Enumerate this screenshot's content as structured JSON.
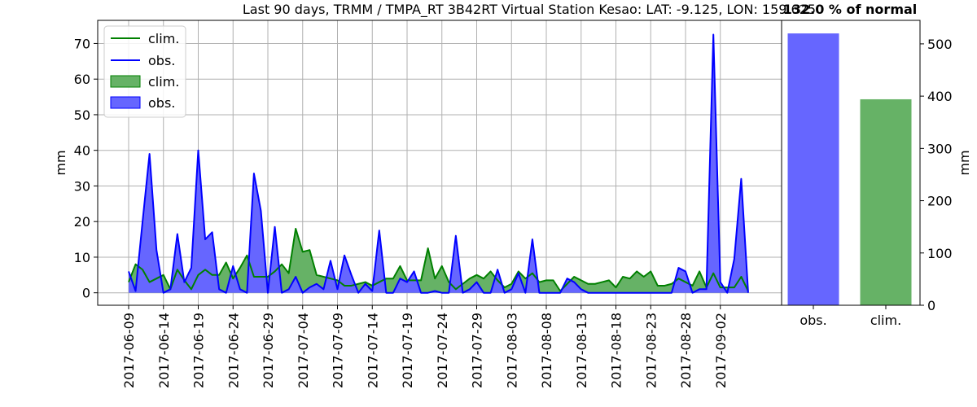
{
  "chart_data": [
    {
      "type": "area",
      "title": "Last 90 days, TRMM / TMPA_RT 3B42RT Virtual Station Kesao: LAT: -9.125, LON: 159.625",
      "xlabel": "",
      "ylabel": "mm",
      "ylim": [
        -3.5,
        76.5
      ],
      "yticks": [
        0,
        10,
        20,
        30,
        40,
        50,
        60,
        70
      ],
      "grid": true,
      "legend_position": "top-left",
      "legend": [
        "clim.",
        "obs.",
        "clim.",
        "obs."
      ],
      "x_tick_labels": [
        "2017-06-09",
        "2017-06-14",
        "2017-06-19",
        "2017-06-24",
        "2017-06-29",
        "2017-07-04",
        "2017-07-09",
        "2017-07-14",
        "2017-07-19",
        "2017-07-24",
        "2017-07-29",
        "2017-08-03",
        "2017-08-08",
        "2017-08-13",
        "2017-08-18",
        "2017-08-23",
        "2017-08-28",
        "2017-09-02"
      ],
      "x_start_date": "2017-06-09",
      "series": [
        {
          "name": "clim.",
          "color": "#008000",
          "fill": "#66b266",
          "values": [
            3,
            8,
            6.5,
            3,
            4,
            5,
            1,
            6.5,
            3.5,
            1,
            5,
            6.5,
            5,
            5,
            8.5,
            4,
            7,
            10.5,
            4.5,
            4.5,
            4.5,
            6,
            8,
            5.5,
            18,
            11.5,
            12,
            5,
            4.5,
            4,
            3.5,
            2,
            2,
            2.5,
            3,
            2,
            3,
            4,
            4,
            7.5,
            3.5,
            3.5,
            3.5,
            12.5,
            4,
            7.5,
            3,
            1,
            2.5,
            4,
            5,
            4,
            6,
            3.5,
            1.5,
            2.5,
            6,
            4,
            5.5,
            3,
            3.5,
            3.5,
            0.5,
            2.5,
            4.5,
            3.5,
            2.5,
            2.5,
            3,
            3.5,
            1.5,
            4.5,
            4,
            6,
            4.5,
            6,
            2,
            2,
            2.5,
            4,
            3,
            2,
            6,
            1.5,
            5.5,
            1.5,
            1.5,
            1.5,
            4.5,
            0.5
          ]
        },
        {
          "name": "obs.",
          "color": "#0000ff",
          "fill": "#6666ff",
          "values": [
            6,
            0.5,
            20,
            39,
            12,
            0,
            1,
            16.5,
            3,
            7,
            40,
            15,
            17,
            1,
            0,
            7.5,
            1,
            0,
            33.5,
            23,
            0,
            18.5,
            0,
            1,
            4.5,
            0,
            1.5,
            2.5,
            1,
            9,
            1,
            10.5,
            5,
            0,
            2.5,
            0.5,
            17.5,
            0,
            0,
            4,
            3,
            6,
            0,
            0,
            0.5,
            0,
            0,
            16,
            0,
            1,
            3,
            0,
            0,
            6.5,
            0,
            1,
            5.5,
            0,
            15,
            0,
            0,
            0,
            0,
            4,
            3,
            1,
            0,
            0,
            0,
            0,
            0,
            0,
            0,
            0,
            0,
            0,
            0,
            0,
            0,
            7,
            6,
            0,
            1,
            1,
            72.5,
            3,
            0,
            9.5,
            32,
            0
          ]
        }
      ]
    },
    {
      "type": "bar",
      "title": "132.0 % of normal",
      "xlabel": "",
      "ylabel": "mm",
      "ylim": [
        0,
        545
      ],
      "yticks": [
        0,
        100,
        200,
        300,
        400,
        500
      ],
      "categories": [
        "obs.",
        "clim."
      ],
      "values": [
        520,
        394
      ],
      "colors": [
        "#6666ff",
        "#66b266"
      ]
    }
  ]
}
